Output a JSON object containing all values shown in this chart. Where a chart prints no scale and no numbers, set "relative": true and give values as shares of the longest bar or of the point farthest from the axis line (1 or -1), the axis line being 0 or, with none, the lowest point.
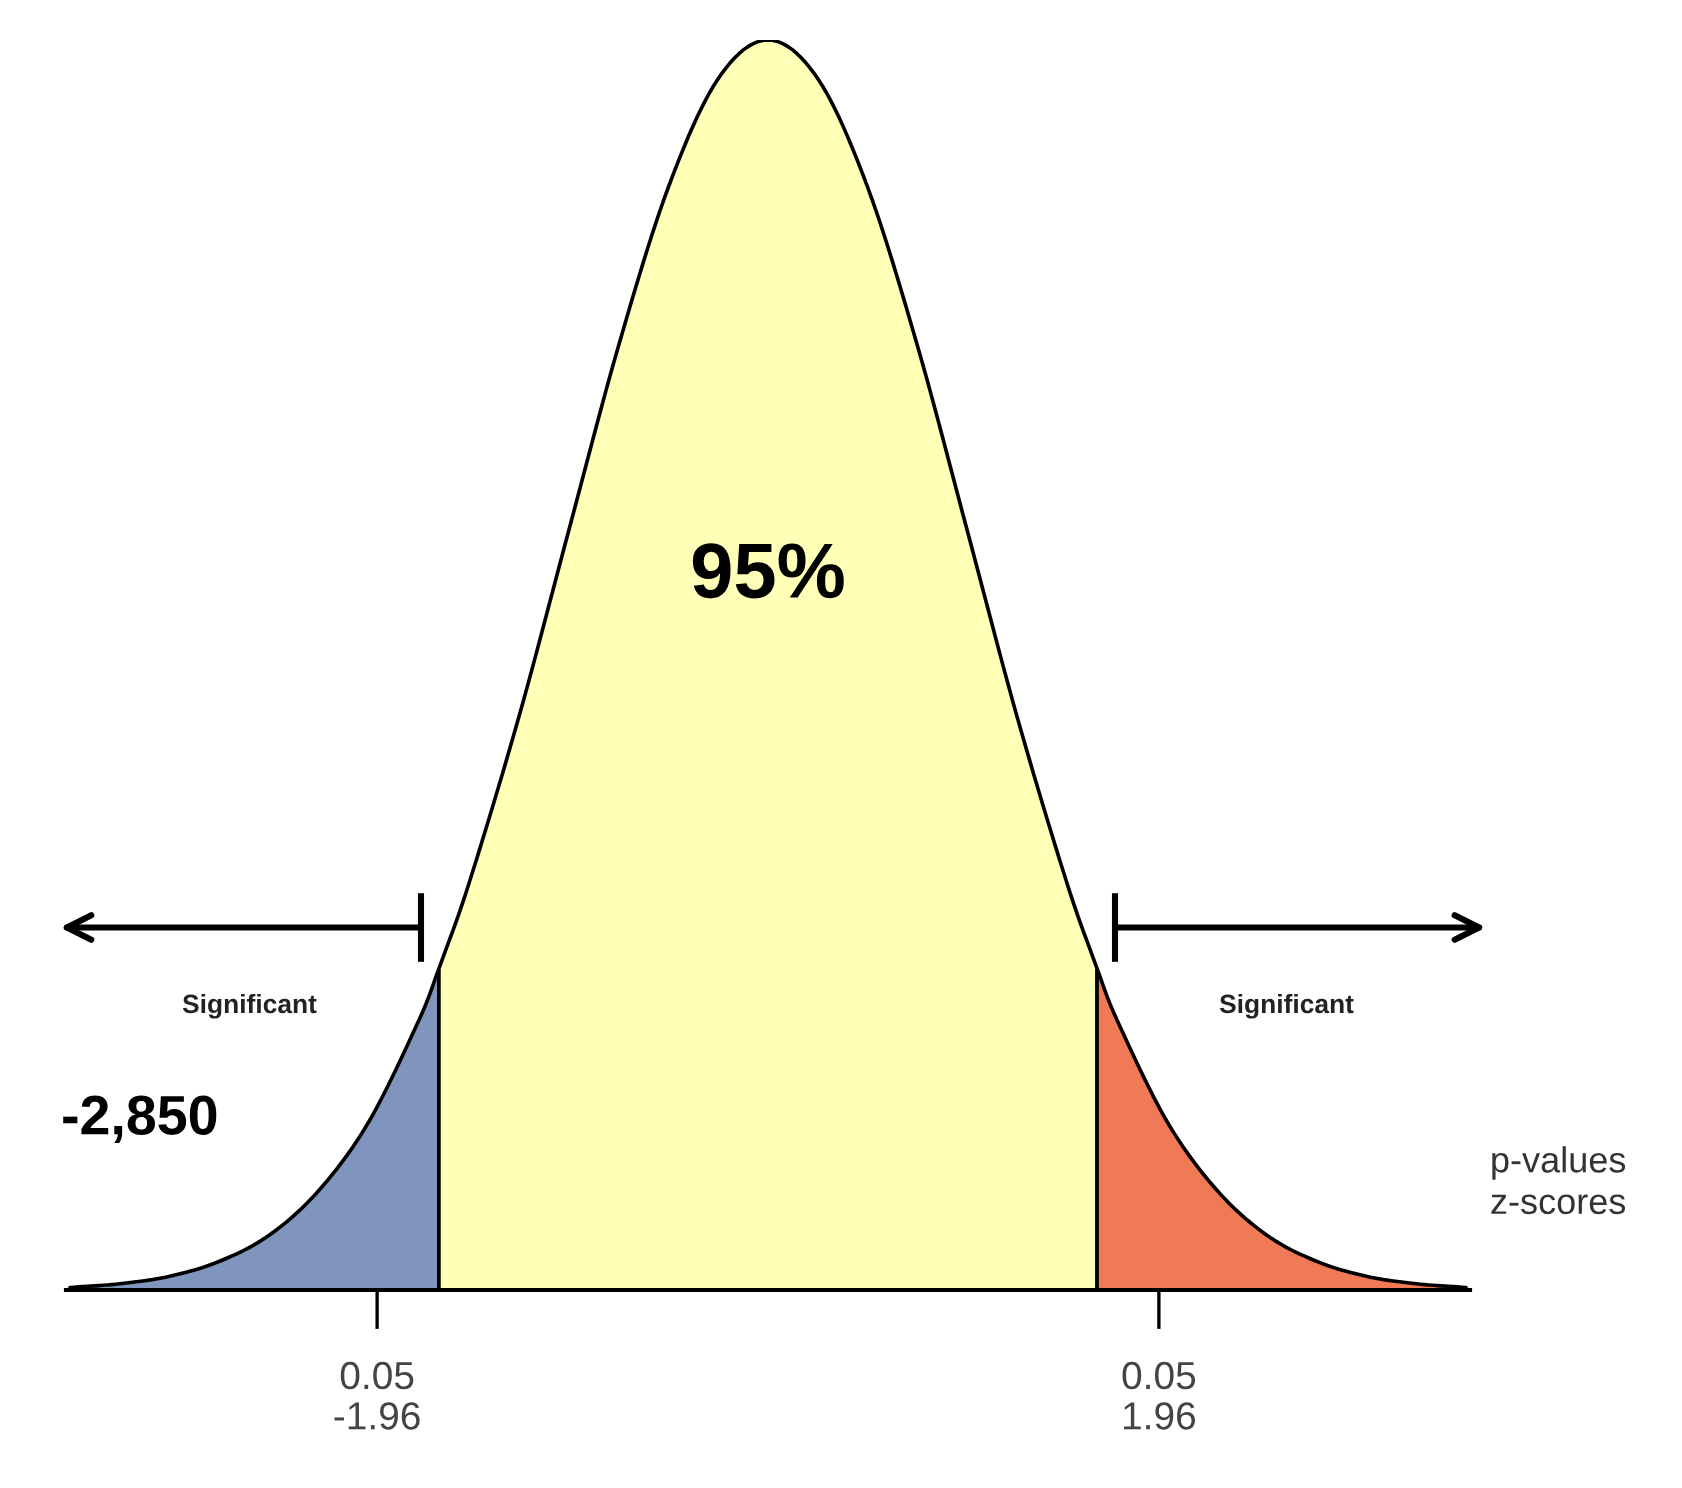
{
  "chart_data": {
    "type": "area",
    "relative": true,
    "xlim": [
      -3.52,
      3.52
    ],
    "xticks": [
      -1.96,
      1.96
    ],
    "series": [
      {
        "color": "#7f95bd",
        "x": [
          -3.5,
          -3.25,
          -3.0,
          -2.75,
          -2.5,
          -2.25,
          -2.0,
          -1.75,
          -1.65
        ],
        "values": [
          0.002,
          0.005,
          0.011,
          0.023,
          0.044,
          0.08,
          0.135,
          0.216,
          0.257
        ]
      },
      {
        "color": "#ffffb8",
        "x": [
          -1.65,
          -1.5,
          -1.25,
          -1.0,
          -0.75,
          -0.5,
          -0.25,
          0.0,
          0.25,
          0.5,
          0.75,
          1.0,
          1.25,
          1.5,
          1.65
        ],
        "values": [
          0.257,
          0.325,
          0.458,
          0.607,
          0.755,
          0.882,
          0.969,
          1.0,
          0.969,
          0.882,
          0.755,
          0.607,
          0.458,
          0.325,
          0.257
        ]
      },
      {
        "color": "#f07a55",
        "x": [
          1.65,
          1.75,
          2.0,
          2.25,
          2.5,
          2.75,
          3.0,
          3.25,
          3.5
        ],
        "values": [
          0.257,
          0.216,
          0.135,
          0.08,
          0.044,
          0.023,
          0.011,
          0.005,
          0.002
        ]
      }
    ],
    "annotations": [
      "95%",
      "Significant",
      "Significant",
      "-2,850",
      "p-values\nz-scores",
      "0.05",
      "0.05"
    ]
  }
}
